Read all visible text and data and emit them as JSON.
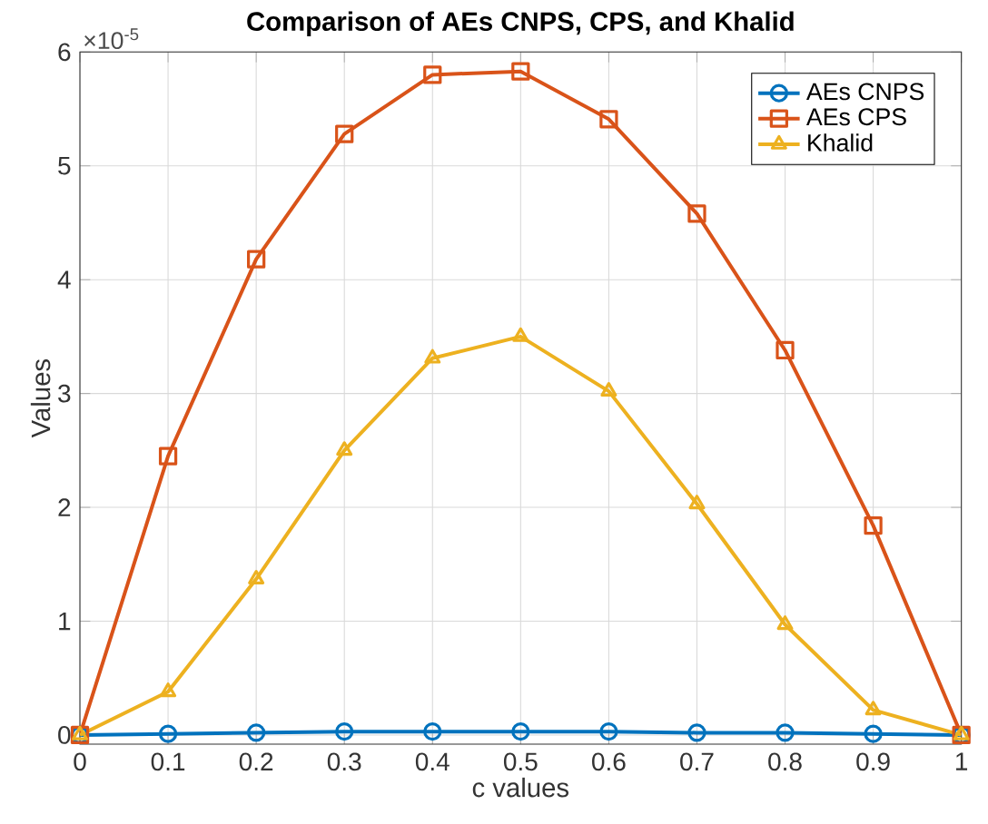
{
  "chart_data": {
    "type": "line",
    "title": "Comparison of AEs CNPS, CPS, and Khalid",
    "xlabel": "c values",
    "ylabel": "Values",
    "annotations": [
      "×10$^{-5}$"
    ],
    "x": [
      0,
      0.1,
      0.2,
      0.3,
      0.4,
      0.5,
      0.6,
      0.7,
      0.8,
      0.9,
      1
    ],
    "series": [
      {
        "name": "AEs CNPS",
        "color": "#0072bd",
        "marker": "circle",
        "values": [
          0,
          0.01,
          0.02,
          0.03,
          0.03,
          0.03,
          0.03,
          0.02,
          0.02,
          0.01,
          0
        ]
      },
      {
        "name": "AEs CPS",
        "color": "#d95319",
        "marker": "square",
        "values": [
          0,
          2.45,
          4.18,
          5.28,
          5.8,
          5.83,
          5.41,
          4.58,
          3.38,
          1.84,
          0
        ]
      },
      {
        "name": "Khalid",
        "color": "#edb120",
        "marker": "triangle",
        "values": [
          0,
          0.38,
          1.37,
          2.5,
          3.31,
          3.5,
          3.02,
          2.03,
          0.97,
          0.22,
          0
        ]
      }
    ],
    "xlim": [
      0,
      1
    ],
    "ylim": [
      -0.08,
      6
    ],
    "xticks": [
      0,
      0.1,
      0.2,
      0.3,
      0.4,
      0.5,
      0.6,
      0.7,
      0.8,
      0.9,
      1
    ],
    "yticks": [
      0,
      1,
      2,
      3,
      4,
      5,
      6
    ],
    "grid": true,
    "legend": "top right",
    "line_style": "solid"
  }
}
